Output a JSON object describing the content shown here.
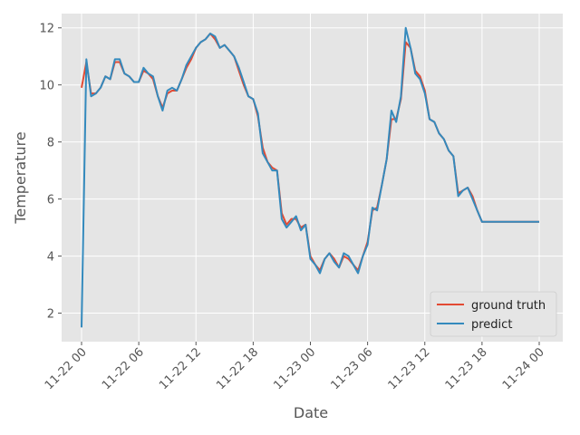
{
  "chart_data": {
    "type": "line",
    "title": "",
    "xlabel": "Date",
    "ylabel": "Temperature",
    "x_tick_labels": [
      "11-22 00",
      "11-22 06",
      "11-22 12",
      "11-22 18",
      "11-23 00",
      "11-23 06",
      "11-23 12",
      "11-23 18",
      "11-24 00"
    ],
    "x_range": [
      "11-22 00",
      "11-24 00"
    ],
    "y_ticks": [
      2,
      4,
      6,
      8,
      10,
      12
    ],
    "ylim": [
      1.0,
      12.5
    ],
    "grid": true,
    "style": "ggplot",
    "legend_position": "lower-right",
    "x_hours": [
      0,
      0.5,
      1,
      1.5,
      2,
      2.5,
      3,
      3.5,
      4,
      4.5,
      5,
      5.5,
      6,
      6.5,
      7,
      7.5,
      8,
      8.5,
      9,
      9.5,
      10,
      10.5,
      11,
      11.5,
      12,
      12.5,
      13,
      13.5,
      14,
      14.5,
      15,
      15.5,
      16,
      16.5,
      17,
      17.5,
      18,
      18.5,
      19,
      19.5,
      20,
      20.5,
      21,
      21.5,
      22,
      22.5,
      23,
      23.5,
      24,
      24.5,
      25,
      25.5,
      26,
      26.5,
      27,
      27.5,
      28,
      28.5,
      29,
      29.5,
      30,
      30.5,
      31,
      31.5,
      32,
      32.5,
      33,
      33.5,
      34,
      34.5,
      35,
      35.5,
      36,
      36.5,
      37,
      37.5,
      38,
      38.5,
      39,
      39.5,
      40,
      40.5,
      41,
      41.5,
      42,
      42.5,
      43,
      43.5,
      44,
      44.5,
      45,
      45.5,
      46,
      46.5,
      47,
      47.5,
      48
    ],
    "series": [
      {
        "name": "ground truth",
        "color": "#E24A33",
        "values": [
          9.9,
          10.8,
          9.7,
          9.7,
          9.9,
          10.3,
          10.2,
          10.8,
          10.8,
          10.4,
          10.3,
          10.1,
          10.1,
          10.5,
          10.4,
          10.2,
          9.6,
          9.2,
          9.7,
          9.8,
          9.8,
          10.2,
          10.6,
          10.9,
          11.3,
          11.5,
          11.6,
          11.8,
          11.6,
          11.3,
          11.4,
          11.2,
          11.0,
          10.5,
          10.0,
          9.6,
          9.5,
          8.9,
          7.8,
          7.3,
          7.1,
          7.0,
          5.5,
          5.1,
          5.3,
          5.3,
          5.0,
          5.1,
          4.0,
          3.7,
          3.5,
          3.9,
          4.1,
          3.9,
          3.6,
          4.0,
          3.9,
          3.7,
          3.5,
          4.0,
          4.5,
          5.6,
          5.7,
          6.5,
          7.4,
          8.8,
          8.8,
          9.5,
          11.5,
          11.3,
          10.5,
          10.3,
          9.8,
          8.8,
          8.7,
          8.3,
          8.1,
          7.7,
          7.5,
          6.2,
          6.3,
          6.4,
          6.1,
          5.6,
          5.2,
          5.2,
          5.2,
          5.2,
          5.2,
          5.2,
          5.2,
          5.2,
          5.2,
          5.2,
          5.2,
          5.2,
          5.2
        ]
      },
      {
        "name": "predict",
        "color": "#348ABD",
        "values": [
          1.5,
          10.9,
          9.6,
          9.7,
          9.9,
          10.3,
          10.2,
          10.9,
          10.9,
          10.4,
          10.3,
          10.1,
          10.1,
          10.6,
          10.4,
          10.3,
          9.6,
          9.1,
          9.8,
          9.9,
          9.8,
          10.2,
          10.7,
          11.0,
          11.3,
          11.5,
          11.6,
          11.8,
          11.7,
          11.3,
          11.4,
          11.2,
          11.0,
          10.6,
          10.1,
          9.6,
          9.5,
          9.0,
          7.6,
          7.3,
          7.0,
          7.0,
          5.3,
          5.0,
          5.2,
          5.4,
          4.9,
          5.1,
          3.9,
          3.7,
          3.4,
          3.9,
          4.1,
          3.8,
          3.6,
          4.1,
          4.0,
          3.7,
          3.4,
          4.0,
          4.4,
          5.7,
          5.6,
          6.5,
          7.4,
          9.1,
          8.7,
          9.6,
          12.0,
          11.3,
          10.4,
          10.2,
          9.7,
          8.8,
          8.7,
          8.3,
          8.1,
          7.7,
          7.5,
          6.1,
          6.3,
          6.4,
          6.0,
          5.6,
          5.2,
          5.2,
          5.2,
          5.2,
          5.2,
          5.2,
          5.2,
          5.2,
          5.2,
          5.2,
          5.2,
          5.2,
          5.2
        ]
      }
    ]
  }
}
